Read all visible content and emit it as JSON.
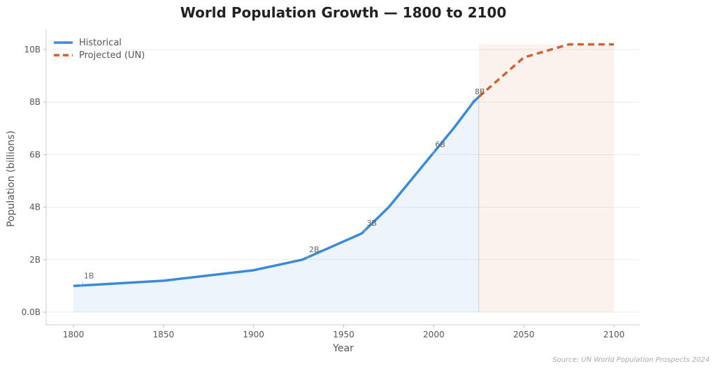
{
  "chart_data": {
    "type": "line",
    "title": "World Population Growth — 1800 to 2100",
    "xlabel": "Year",
    "ylabel": "Population (billions)",
    "xlim": [
      1786,
      2115
    ],
    "ylim": [
      -0.5,
      10.7
    ],
    "xticks": [
      1800,
      1850,
      1900,
      1950,
      2000,
      2050,
      2100
    ],
    "yticks": [
      0,
      2,
      4,
      6,
      8,
      10
    ],
    "ytick_labels": [
      "0.0B",
      "2B",
      "4B",
      "6B",
      "8B",
      "10B"
    ],
    "grid": "horizontal",
    "legend_position": "top-left",
    "series": [
      {
        "name": "Historical",
        "color": "#3b8ad8",
        "style": "solid",
        "x": [
          1800,
          1850,
          1900,
          1927,
          1960,
          1975,
          1987,
          1999,
          2011,
          2022,
          2025
        ],
        "y": [
          1.0,
          1.2,
          1.6,
          2.0,
          3.0,
          4.0,
          5.0,
          6.0,
          7.0,
          8.0,
          8.2
        ]
      },
      {
        "name": "Projected (UN)",
        "color": "#d0623a",
        "style": "dashed",
        "x": [
          2025,
          2050,
          2075,
          2100
        ],
        "y": [
          8.2,
          9.7,
          10.2,
          10.2
        ]
      }
    ],
    "annotations": [
      {
        "text": "1B",
        "x": 1805,
        "y": 1.0
      },
      {
        "text": "2B",
        "x": 1930,
        "y": 2.0
      },
      {
        "text": "3B",
        "x": 1962,
        "y": 3.0
      },
      {
        "text": "6B",
        "x": 2000,
        "y": 6.0
      },
      {
        "text": "8B",
        "x": 2022,
        "y": 8.0
      }
    ],
    "projection_start": 2025,
    "source": "Source: UN World Population Prospects 2024"
  }
}
